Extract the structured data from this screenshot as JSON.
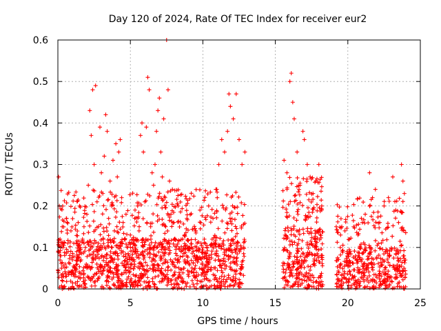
{
  "chart_data": {
    "type": "scatter",
    "title": "Day 120 of 2024, Rate Of TEC Index for receiver eur2",
    "xlabel": "GPS time / hours",
    "ylabel": "ROTI / TECUs",
    "xlim": [
      0,
      25
    ],
    "ylim": [
      0,
      0.6
    ],
    "xticks": [
      "0",
      "5",
      "10",
      "15",
      "20",
      "25"
    ],
    "yticks": [
      "0",
      "0.1",
      "0.2",
      "0.3",
      "0.4",
      "0.5",
      "0.6"
    ],
    "xtick_values": [
      0,
      5,
      10,
      15,
      20,
      25
    ],
    "ytick_values": [
      0,
      0.1,
      0.2,
      0.3,
      0.4,
      0.5,
      0.6
    ],
    "grid": true,
    "marker": "+",
    "color": "#ff0000",
    "points": [
      [
        0.05,
        0.27
      ],
      [
        0.1,
        0.2
      ],
      [
        0.15,
        0.12
      ],
      [
        0.2,
        0.08
      ],
      [
        0.25,
        0.05
      ],
      [
        0.3,
        0.15
      ],
      [
        0.35,
        0.1
      ],
      [
        0.4,
        0.03
      ],
      [
        0.5,
        0.06
      ],
      [
        0.6,
        0.17
      ],
      [
        0.7,
        0.09
      ],
      [
        0.8,
        0.04
      ],
      [
        0.9,
        0.14
      ],
      [
        1.0,
        0.07
      ],
      [
        1.1,
        0.11
      ],
      [
        1.2,
        0.05
      ],
      [
        1.3,
        0.09
      ],
      [
        1.4,
        0.16
      ],
      [
        1.5,
        0.2
      ],
      [
        1.6,
        0.07
      ],
      [
        1.7,
        0.12
      ],
      [
        1.8,
        0.15
      ],
      [
        1.9,
        0.1
      ],
      [
        2.0,
        0.18
      ],
      [
        2.1,
        0.25
      ],
      [
        2.2,
        0.43
      ],
      [
        2.3,
        0.37
      ],
      [
        2.4,
        0.48
      ],
      [
        2.5,
        0.3
      ],
      [
        2.6,
        0.49
      ],
      [
        2.7,
        0.21
      ],
      [
        2.8,
        0.15
      ],
      [
        2.9,
        0.39
      ],
      [
        3.0,
        0.28
      ],
      [
        3.1,
        0.23
      ],
      [
        3.2,
        0.32
      ],
      [
        3.3,
        0.42
      ],
      [
        3.4,
        0.38
      ],
      [
        3.5,
        0.17
      ],
      [
        3.6,
        0.26
      ],
      [
        3.7,
        0.2
      ],
      [
        3.8,
        0.31
      ],
      [
        3.9,
        0.14
      ],
      [
        4.0,
        0.35
      ],
      [
        4.1,
        0.27
      ],
      [
        4.2,
        0.33
      ],
      [
        4.3,
        0.36
      ],
      [
        4.4,
        0.22
      ],
      [
        4.5,
        0.16
      ],
      [
        4.6,
        0.12
      ],
      [
        4.7,
        0.18
      ],
      [
        4.8,
        0.1
      ],
      [
        4.9,
        0.08
      ],
      [
        5.0,
        0.13
      ],
      [
        5.1,
        0.06
      ],
      [
        5.2,
        0.11
      ],
      [
        5.3,
        0.17
      ],
      [
        5.4,
        0.09
      ],
      [
        5.5,
        0.2
      ],
      [
        5.6,
        0.14
      ],
      [
        5.7,
        0.37
      ],
      [
        5.8,
        0.4
      ],
      [
        5.9,
        0.33
      ],
      [
        6.0,
        0.21
      ],
      [
        6.1,
        0.39
      ],
      [
        6.2,
        0.51
      ],
      [
        6.3,
        0.48
      ],
      [
        6.4,
        0.15
      ],
      [
        6.5,
        0.28
      ],
      [
        6.6,
        0.25
      ],
      [
        6.7,
        0.3
      ],
      [
        6.8,
        0.38
      ],
      [
        6.9,
        0.43
      ],
      [
        7.0,
        0.46
      ],
      [
        7.1,
        0.33
      ],
      [
        7.2,
        0.27
      ],
      [
        7.3,
        0.41
      ],
      [
        7.4,
        0.22
      ],
      [
        7.5,
        0.6
      ],
      [
        7.6,
        0.48
      ],
      [
        7.7,
        0.26
      ],
      [
        7.8,
        0.18
      ],
      [
        7.9,
        0.24
      ],
      [
        8.0,
        0.16
      ],
      [
        8.3,
        0.2
      ],
      [
        8.6,
        0.12
      ],
      [
        8.9,
        0.17
      ],
      [
        9.2,
        0.1
      ],
      [
        9.5,
        0.14
      ],
      [
        9.8,
        0.19
      ],
      [
        10.1,
        0.12
      ],
      [
        10.4,
        0.2
      ],
      [
        10.7,
        0.17
      ],
      [
        10.9,
        0.24
      ],
      [
        11.1,
        0.3
      ],
      [
        11.3,
        0.36
      ],
      [
        11.5,
        0.33
      ],
      [
        11.7,
        0.38
      ],
      [
        11.8,
        0.47
      ],
      [
        11.9,
        0.44
      ],
      [
        12.1,
        0.41
      ],
      [
        12.3,
        0.47
      ],
      [
        12.5,
        0.36
      ],
      [
        12.7,
        0.3
      ],
      [
        12.9,
        0.33
      ],
      [
        15.6,
        0.31
      ],
      [
        15.8,
        0.28
      ],
      [
        16.0,
        0.5
      ],
      [
        16.1,
        0.52
      ],
      [
        16.2,
        0.45
      ],
      [
        16.3,
        0.41
      ],
      [
        16.5,
        0.33
      ],
      [
        16.7,
        0.25
      ],
      [
        16.9,
        0.38
      ],
      [
        17.0,
        0.36
      ],
      [
        17.2,
        0.3
      ],
      [
        17.4,
        0.27
      ],
      [
        17.6,
        0.23
      ],
      [
        17.8,
        0.26
      ],
      [
        18.0,
        0.3
      ],
      [
        18.2,
        0.2
      ],
      [
        19.2,
        0.15
      ],
      [
        19.5,
        0.13
      ],
      [
        19.8,
        0.14
      ],
      [
        20.1,
        0.12
      ],
      [
        20.4,
        0.15
      ],
      [
        20.7,
        0.13
      ],
      [
        21.0,
        0.16
      ],
      [
        21.2,
        0.18
      ],
      [
        21.5,
        0.28
      ],
      [
        21.7,
        0.22
      ],
      [
        21.9,
        0.24
      ],
      [
        22.2,
        0.16
      ],
      [
        22.5,
        0.2
      ],
      [
        22.8,
        0.22
      ],
      [
        23.1,
        0.27
      ],
      [
        23.3,
        0.19
      ],
      [
        23.5,
        0.16
      ],
      [
        23.7,
        0.3
      ],
      [
        23.8,
        0.26
      ],
      [
        23.9,
        0.23
      ]
    ],
    "dense_segments": [
      {
        "start": 0.0,
        "end": 12.9,
        "base_max": 0.12,
        "count": 1350
      },
      {
        "start": 15.5,
        "end": 18.3,
        "base_max": 0.15,
        "count": 330
      },
      {
        "start": 19.2,
        "end": 24.0,
        "base_max": 0.1,
        "count": 450
      }
    ]
  }
}
